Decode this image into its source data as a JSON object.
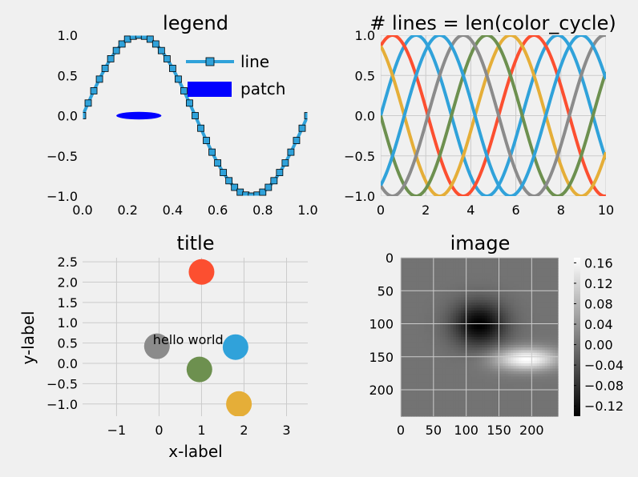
{
  "chart_data": [
    {
      "type": "line",
      "title": "legend",
      "xlim": [
        0,
        1.0
      ],
      "ylim": [
        -1.0,
        1.0
      ],
      "xticks": [
        "0.0",
        "0.2",
        "0.4",
        "0.6",
        "0.8",
        "1.0"
      ],
      "yticks": [
        "1.0",
        "0.5",
        "0.0",
        "−0.5",
        "−1.0"
      ],
      "grid": false,
      "series": [
        {
          "name": "line",
          "function": "sin(2*pi*x)",
          "marker": "square",
          "color": "#30a2da",
          "marker_color": "#30a2da",
          "marker_edge": "#000000"
        }
      ],
      "patch": {
        "name": "patch",
        "shape": "ellipse",
        "center": [
          0.25,
          0.0
        ],
        "width": 0.2,
        "height": 0.2,
        "color": "#0000ff"
      },
      "legend": {
        "placement": "upper-right",
        "entries": [
          "line",
          "patch"
        ]
      }
    },
    {
      "type": "line",
      "title": "# lines = len(color_cycle)",
      "xlim": [
        0,
        10
      ],
      "ylim": [
        -1.0,
        1.0
      ],
      "xticks": [
        "0",
        "2",
        "4",
        "6",
        "8",
        "10"
      ],
      "yticks": [
        "1.0",
        "0.5",
        "0.0",
        "−0.5",
        "−1.0"
      ],
      "grid": true,
      "series": [
        {
          "phase": 0.0,
          "color": "#30a2da"
        },
        {
          "phase": 1.0472,
          "color": "#fc4f30"
        },
        {
          "phase": 2.0944,
          "color": "#e5ae38"
        },
        {
          "phase": 3.1416,
          "color": "#6d904f"
        },
        {
          "phase": 4.1888,
          "color": "#8b8b8b"
        },
        {
          "phase": 5.236,
          "color": "#30a2da"
        }
      ]
    },
    {
      "type": "scatter",
      "title": "title",
      "xlabel": "x-label",
      "ylabel": "y-label",
      "xlim": [
        -1.8,
        3.5
      ],
      "ylim": [
        -1.3,
        2.6
      ],
      "xticks": [
        "−1",
        "0",
        "1",
        "2",
        "3"
      ],
      "yticks": [
        "2.5",
        "2.0",
        "1.5",
        "1.0",
        "0.5",
        "0.0",
        "−0.5",
        "−1.0"
      ],
      "grid": true,
      "points": [
        {
          "x": 1.0,
          "y": 2.25,
          "color": "#fc4f30"
        },
        {
          "x": 1.8,
          "y": 0.4,
          "color": "#30a2da"
        },
        {
          "x": -0.05,
          "y": 0.42,
          "color": "#8b8b8b"
        },
        {
          "x": 0.95,
          "y": -0.15,
          "color": "#6d904f"
        },
        {
          "x": 1.88,
          "y": -1.0,
          "color": "#e5ae38"
        }
      ],
      "annotation": {
        "text": "hello world",
        "x": 0.95,
        "y": 0.55
      }
    },
    {
      "type": "heatmap",
      "title": "image",
      "xlim": [
        0,
        240
      ],
      "ylim": [
        240,
        0
      ],
      "xticks": [
        "0",
        "50",
        "100",
        "150",
        "200"
      ],
      "yticks": [
        "0",
        "50",
        "100",
        "150",
        "200"
      ],
      "grid": true,
      "colormap": "gray",
      "vmin": -0.14,
      "vmax": 0.17,
      "colorbar_ticks": [
        "0.16",
        "0.12",
        "0.08",
        "0.04",
        "0.00",
        "−0.04",
        "−0.08",
        "−0.12"
      ]
    }
  ]
}
